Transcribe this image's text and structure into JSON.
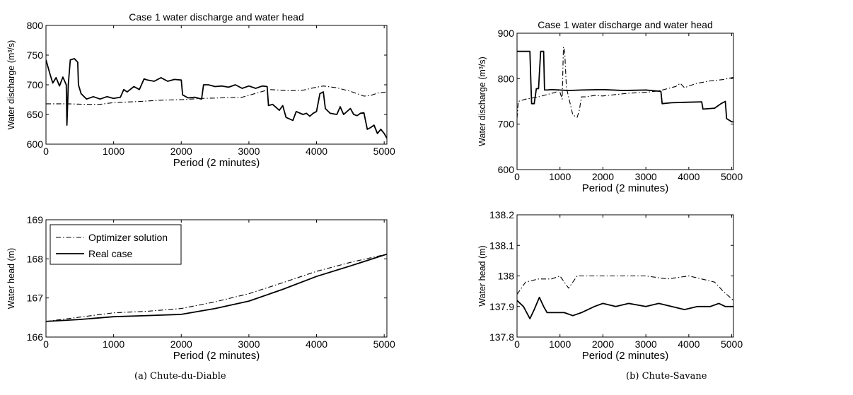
{
  "captions": {
    "a": "(a)  Chute-du-Diable",
    "b": "(b)  Chute-Savane"
  },
  "colors": {
    "line": "#000000",
    "background": "#ffffff"
  },
  "chart_data": [
    {
      "id": "a-top",
      "type": "line",
      "title": "Case 1 water discharge and water head",
      "xlabel": "Period (2 minutes)",
      "ylabel": "Water discharge (m³/s)",
      "xlim": [
        0,
        5040
      ],
      "ylim": [
        600,
        800
      ],
      "xticks": [
        0,
        1000,
        2000,
        3000,
        4000,
        5000
      ],
      "yticks": [
        600,
        650,
        700,
        750,
        800
      ],
      "grid": false,
      "series": [
        {
          "style": "dashdot",
          "points": [
            [
              0,
              668
            ],
            [
              300,
              668
            ],
            [
              600,
              667
            ],
            [
              800,
              667
            ],
            [
              1000,
              670
            ],
            [
              1200,
              671
            ],
            [
              1400,
              672
            ],
            [
              1700,
              674
            ],
            [
              2000,
              675
            ],
            [
              2300,
              677
            ],
            [
              2600,
              678
            ],
            [
              2900,
              679
            ],
            [
              3300,
              692
            ],
            [
              3600,
              690
            ],
            [
              3800,
              691
            ],
            [
              4000,
              696
            ],
            [
              4100,
              698
            ],
            [
              4300,
              695
            ],
            [
              4500,
              689
            ],
            [
              4700,
              681
            ],
            [
              4800,
              682
            ],
            [
              4900,
              686
            ],
            [
              5040,
              688
            ]
          ]
        },
        {
          "style": "solid",
          "points": [
            [
              0,
              742
            ],
            [
              60,
              718
            ],
            [
              100,
              703
            ],
            [
              150,
              712
            ],
            [
              200,
              698
            ],
            [
              250,
              713
            ],
            [
              300,
              700
            ],
            [
              310,
              632
            ],
            [
              330,
              701
            ],
            [
              360,
              742
            ],
            [
              420,
              744
            ],
            [
              470,
              738
            ],
            [
              480,
              700
            ],
            [
              520,
              685
            ],
            [
              600,
              676
            ],
            [
              700,
              680
            ],
            [
              800,
              676
            ],
            [
              900,
              680
            ],
            [
              1000,
              677
            ],
            [
              1100,
              679
            ],
            [
              1150,
              692
            ],
            [
              1200,
              688
            ],
            [
              1300,
              697
            ],
            [
              1380,
              692
            ],
            [
              1450,
              710
            ],
            [
              1500,
              708
            ],
            [
              1600,
              706
            ],
            [
              1700,
              712
            ],
            [
              1800,
              706
            ],
            [
              1900,
              709
            ],
            [
              2000,
              708
            ],
            [
              2020,
              683
            ],
            [
              2100,
              678
            ],
            [
              2200,
              679
            ],
            [
              2300,
              676
            ],
            [
              2330,
              700
            ],
            [
              2400,
              700
            ],
            [
              2500,
              697
            ],
            [
              2600,
              698
            ],
            [
              2700,
              696
            ],
            [
              2800,
              700
            ],
            [
              2900,
              694
            ],
            [
              3000,
              698
            ],
            [
              3100,
              694
            ],
            [
              3200,
              698
            ],
            [
              3270,
              697
            ],
            [
              3290,
              665
            ],
            [
              3350,
              667
            ],
            [
              3450,
              657
            ],
            [
              3500,
              665
            ],
            [
              3550,
              645
            ],
            [
              3650,
              640
            ],
            [
              3700,
              655
            ],
            [
              3800,
              650
            ],
            [
              3850,
              652
            ],
            [
              3900,
              647
            ],
            [
              3950,
              652
            ],
            [
              4000,
              655
            ],
            [
              4050,
              685
            ],
            [
              4100,
              688
            ],
            [
              4130,
              660
            ],
            [
              4200,
              652
            ],
            [
              4300,
              650
            ],
            [
              4350,
              663
            ],
            [
              4400,
              650
            ],
            [
              4500,
              660
            ],
            [
              4550,
              650
            ],
            [
              4600,
              648
            ],
            [
              4650,
              652
            ],
            [
              4700,
              653
            ],
            [
              4750,
              625
            ],
            [
              4800,
              628
            ],
            [
              4850,
              632
            ],
            [
              4900,
              618
            ],
            [
              4950,
              625
            ],
            [
              5000,
              618
            ],
            [
              5040,
              610
            ]
          ]
        }
      ]
    },
    {
      "id": "a-bottom",
      "type": "line",
      "title": "",
      "xlabel": "Period (2 minutes)",
      "ylabel": "Water head (m)",
      "xlim": [
        0,
        5040
      ],
      "ylim": [
        166,
        169
      ],
      "xticks": [
        0,
        1000,
        2000,
        3000,
        4000,
        5000
      ],
      "yticks": [
        166,
        167,
        168,
        169
      ],
      "grid": false,
      "legend": {
        "placement": "top-left",
        "entries": [
          "Optimizer solution",
          "Real case"
        ]
      },
      "series": [
        {
          "name": "Optimizer solution",
          "style": "dashdot",
          "points": [
            [
              0,
              166.4
            ],
            [
              500,
              166.51
            ],
            [
              1000,
              166.62
            ],
            [
              1500,
              166.66
            ],
            [
              2000,
              166.73
            ],
            [
              2500,
              166.9
            ],
            [
              3000,
              167.11
            ],
            [
              3500,
              167.39
            ],
            [
              4000,
              167.68
            ],
            [
              4500,
              167.91
            ],
            [
              5040,
              168.12
            ]
          ]
        },
        {
          "name": "Real case",
          "style": "solid",
          "points": [
            [
              0,
              166.4
            ],
            [
              500,
              166.45
            ],
            [
              1000,
              166.52
            ],
            [
              1500,
              166.55
            ],
            [
              2000,
              166.58
            ],
            [
              2500,
              166.73
            ],
            [
              3000,
              166.92
            ],
            [
              3500,
              167.22
            ],
            [
              4000,
              167.55
            ],
            [
              4500,
              167.82
            ],
            [
              5040,
              168.12
            ]
          ]
        }
      ]
    },
    {
      "id": "b-top",
      "type": "line",
      "title": "Case 1 water discharge and water head",
      "xlabel": "Period (2 minutes)",
      "ylabel": "Water discharge (m³/s)",
      "xlim": [
        0,
        5040
      ],
      "ylim": [
        600,
        900
      ],
      "xticks": [
        0,
        1000,
        2000,
        3000,
        4000,
        5000
      ],
      "yticks": [
        600,
        700,
        800,
        900
      ],
      "grid": false,
      "series": [
        {
          "style": "dashdot",
          "points": [
            [
              0,
              713
            ],
            [
              30,
              750
            ],
            [
              200,
              755
            ],
            [
              500,
              760
            ],
            [
              700,
              765
            ],
            [
              900,
              770
            ],
            [
              950,
              775
            ],
            [
              1000,
              770
            ],
            [
              1050,
              755
            ],
            [
              1080,
              870
            ],
            [
              1110,
              860
            ],
            [
              1150,
              780
            ],
            [
              1200,
              760
            ],
            [
              1300,
              720
            ],
            [
              1400,
              715
            ],
            [
              1450,
              730
            ],
            [
              1500,
              760
            ],
            [
              1600,
              760
            ],
            [
              1800,
              763
            ],
            [
              2000,
              762
            ],
            [
              2300,
              765
            ],
            [
              2600,
              768
            ],
            [
              3000,
              770
            ],
            [
              3300,
              773
            ],
            [
              3500,
              778
            ],
            [
              3700,
              783
            ],
            [
              3800,
              790
            ],
            [
              3900,
              780
            ],
            [
              4000,
              784
            ],
            [
              4200,
              790
            ],
            [
              4500,
              795
            ],
            [
              4800,
              798
            ],
            [
              5040,
              803
            ]
          ]
        },
        {
          "style": "solid",
          "points": [
            [
              0,
              860
            ],
            [
              300,
              860
            ],
            [
              320,
              800
            ],
            [
              340,
              745
            ],
            [
              400,
              745
            ],
            [
              450,
              778
            ],
            [
              500,
              778
            ],
            [
              550,
              860
            ],
            [
              620,
              860
            ],
            [
              640,
              775
            ],
            [
              700,
              775
            ],
            [
              800,
              776
            ],
            [
              1000,
              775
            ],
            [
              1200,
              774
            ],
            [
              1500,
              775
            ],
            [
              2000,
              776
            ],
            [
              2500,
              774
            ],
            [
              3000,
              775
            ],
            [
              3350,
              772
            ],
            [
              3380,
              745
            ],
            [
              3600,
              747
            ],
            [
              3900,
              748
            ],
            [
              4300,
              749
            ],
            [
              4330,
              733
            ],
            [
              4600,
              735
            ],
            [
              4750,
              745
            ],
            [
              4850,
              750
            ],
            [
              4880,
              712
            ],
            [
              5000,
              705
            ],
            [
              5040,
              705
            ]
          ]
        }
      ]
    },
    {
      "id": "b-bottom",
      "type": "line",
      "title": "",
      "xlabel": "Period (2 minutes)",
      "ylabel": "Water head (m)",
      "xlim": [
        0,
        5040
      ],
      "ylim": [
        137.8,
        138.2
      ],
      "xticks": [
        0,
        1000,
        2000,
        3000,
        4000,
        5000
      ],
      "yticks": [
        137.8,
        137.9,
        138,
        138.1,
        138.2
      ],
      "ytick_labels": [
        "137.8",
        "137.9",
        "138",
        "138.1",
        "138.2"
      ],
      "grid": false,
      "series": [
        {
          "style": "dashdot",
          "points": [
            [
              0,
              137.94
            ],
            [
              200,
              137.98
            ],
            [
              500,
              137.99
            ],
            [
              800,
              137.99
            ],
            [
              1000,
              138.0
            ],
            [
              1100,
              137.98
            ],
            [
              1200,
              137.96
            ],
            [
              1300,
              137.98
            ],
            [
              1400,
              138.0
            ],
            [
              1600,
              138.0
            ],
            [
              2000,
              138.0
            ],
            [
              2500,
              138.0
            ],
            [
              3000,
              138.0
            ],
            [
              3500,
              137.99
            ],
            [
              4000,
              138.0
            ],
            [
              4300,
              137.99
            ],
            [
              4600,
              137.98
            ],
            [
              4800,
              137.95
            ],
            [
              5040,
              137.92
            ]
          ]
        },
        {
          "style": "solid",
          "points": [
            [
              0,
              137.92
            ],
            [
              150,
              137.9
            ],
            [
              300,
              137.86
            ],
            [
              400,
              137.89
            ],
            [
              520,
              137.93
            ],
            [
              620,
              137.9
            ],
            [
              700,
              137.88
            ],
            [
              900,
              137.88
            ],
            [
              1100,
              137.88
            ],
            [
              1300,
              137.87
            ],
            [
              1500,
              137.88
            ],
            [
              1800,
              137.9
            ],
            [
              2000,
              137.91
            ],
            [
              2300,
              137.9
            ],
            [
              2600,
              137.91
            ],
            [
              3000,
              137.9
            ],
            [
              3300,
              137.91
            ],
            [
              3600,
              137.9
            ],
            [
              3900,
              137.89
            ],
            [
              4200,
              137.9
            ],
            [
              4500,
              137.9
            ],
            [
              4700,
              137.91
            ],
            [
              4850,
              137.9
            ],
            [
              5040,
              137.9
            ]
          ]
        }
      ]
    }
  ]
}
